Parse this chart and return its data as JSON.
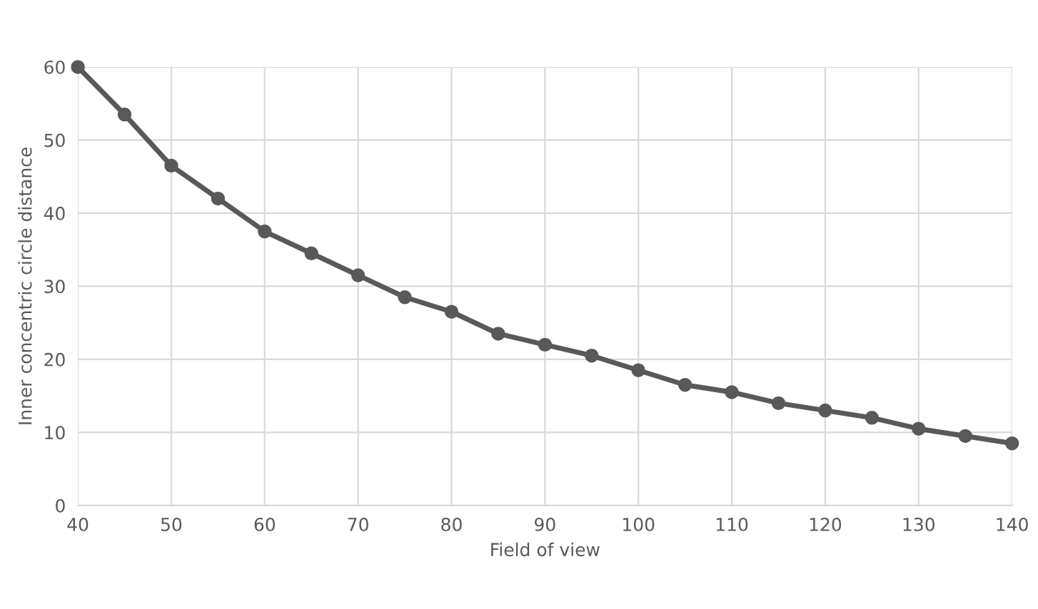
{
  "chart_data": {
    "type": "line",
    "xlabel": "Field of view",
    "ylabel": "Inner concentric circle distance",
    "x": [
      40,
      45,
      50,
      55,
      60,
      65,
      70,
      75,
      80,
      85,
      90,
      95,
      100,
      105,
      110,
      115,
      120,
      125,
      130,
      135,
      140
    ],
    "series": [
      {
        "color": "#595959",
        "values": [
          60,
          53.5,
          46.5,
          42,
          37.5,
          34.5,
          31.5,
          28.5,
          26.5,
          23.5,
          22,
          20.5,
          18.5,
          16.5,
          15.5,
          14,
          13,
          12,
          10.5,
          9.5,
          8.5
        ]
      }
    ],
    "xlim": [
      40,
      140
    ],
    "xticks": [
      40,
      50,
      60,
      70,
      80,
      90,
      100,
      110,
      120,
      130,
      140
    ],
    "ylim": [
      0,
      60
    ],
    "yticks": [
      0,
      10,
      20,
      30,
      40,
      50,
      60
    ],
    "grid": true,
    "marker": "circle",
    "line_style": "solid",
    "legend": false
  }
}
